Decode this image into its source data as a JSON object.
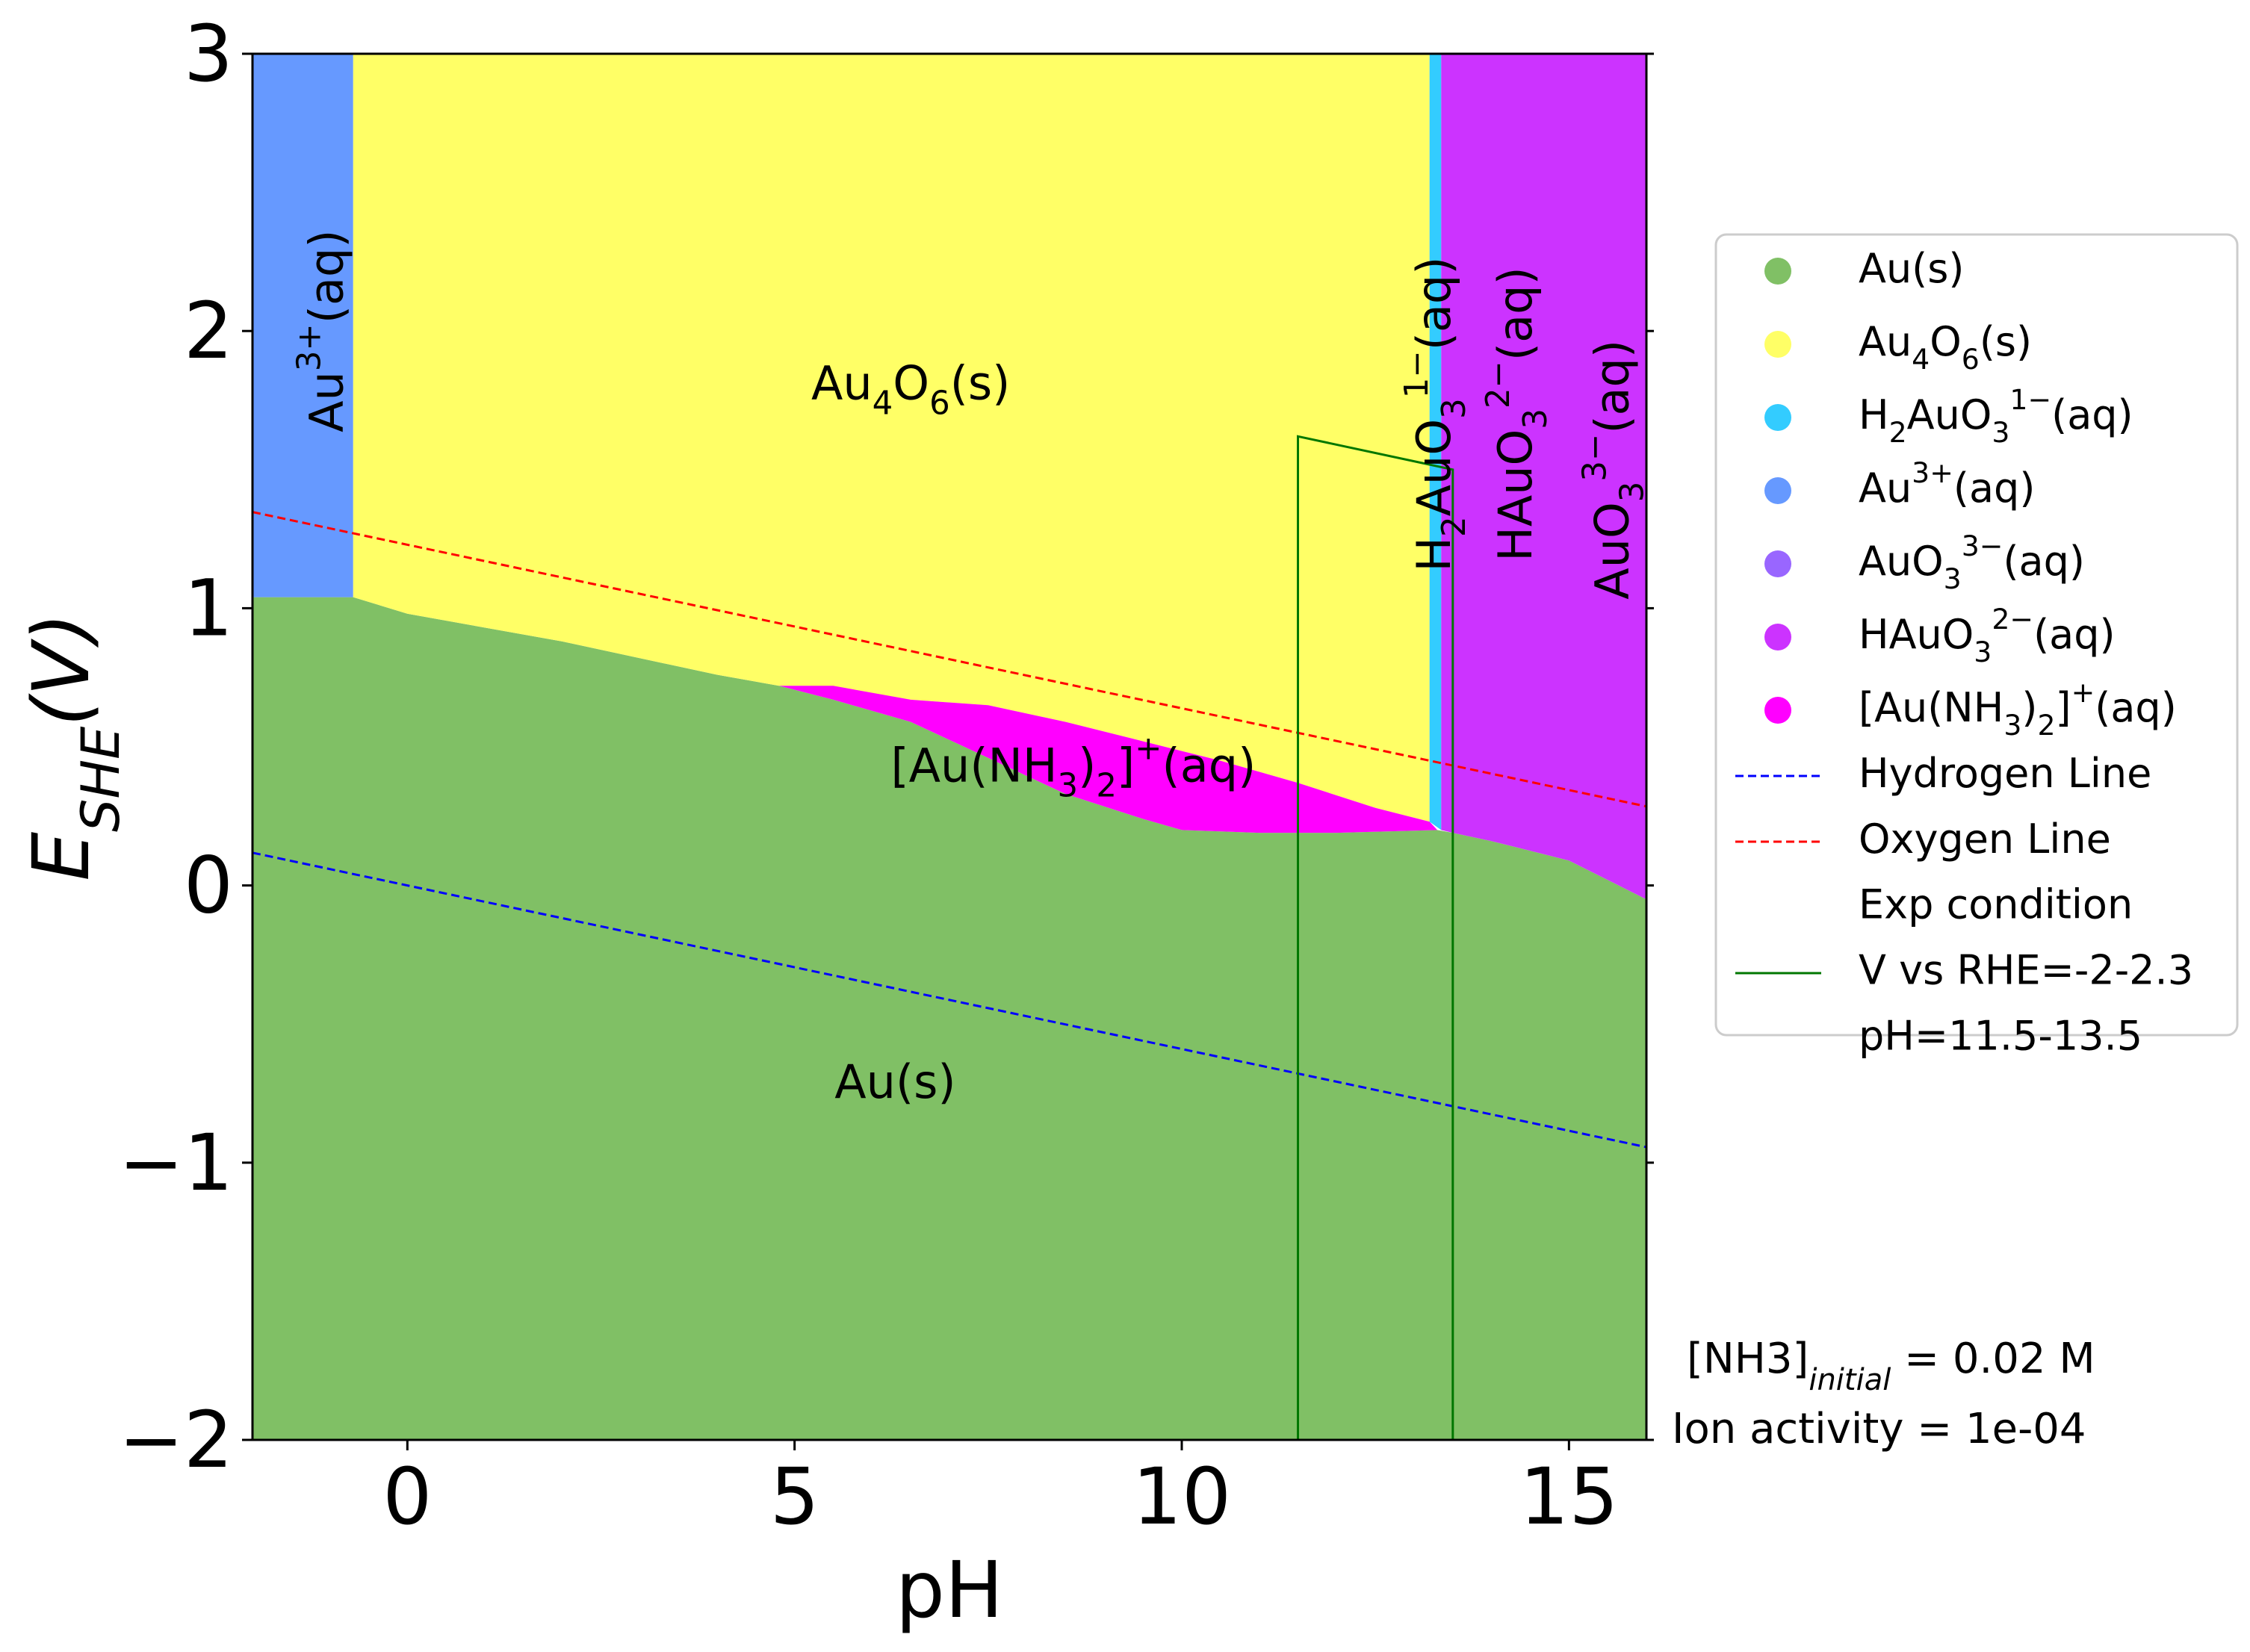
{
  "chart_data": {
    "type": "area",
    "title": "",
    "xlabel": "pH",
    "ylabel": "E_SHE(V)",
    "xlim": [
      -2,
      16
    ],
    "ylim": [
      -2,
      3
    ],
    "xticks": [
      0,
      5,
      10,
      15
    ],
    "yticks": [
      -2,
      -1,
      0,
      1,
      2,
      3
    ],
    "grid": false,
    "colors": {
      "au_s": "#80c065",
      "au4o6": "#ffff66",
      "h2auo3": "#33ccff",
      "au3": "#6699ff",
      "auo3": "#9966ff",
      "hauo3": "#cc33ff",
      "aunh3": "#ff00ff",
      "hydrogen": "#0000ff",
      "oxygen": "#ff0000",
      "exp": "#007700"
    },
    "regions": [
      {
        "species": "Au(s)",
        "color_key": "au_s",
        "boundary": [
          [
            -2,
            -2
          ],
          [
            16,
            -2
          ],
          [
            16,
            -0.05
          ],
          [
            15,
            0.09
          ],
          [
            14,
            0.16
          ],
          [
            13.5,
            0.19
          ],
          [
            13.3,
            0.2
          ],
          [
            12,
            0.19
          ],
          [
            11,
            0.19
          ],
          [
            10,
            0.2
          ],
          [
            9.5,
            0.24
          ],
          [
            8.5,
            0.33
          ],
          [
            7.5,
            0.46
          ],
          [
            6.5,
            0.59
          ],
          [
            5.5,
            0.67
          ],
          [
            4.8,
            0.72
          ],
          [
            4,
            0.76
          ],
          [
            2,
            0.88
          ],
          [
            0,
            0.98
          ],
          [
            -0.7,
            1.04
          ],
          [
            -2,
            1.04
          ]
        ]
      },
      {
        "species": "Au3+(aq)",
        "color_key": "au3",
        "boundary": [
          [
            -2,
            1.04
          ],
          [
            -0.7,
            1.04
          ],
          [
            -0.7,
            3
          ],
          [
            -2,
            3
          ]
        ]
      },
      {
        "species": "Au4O6(s)",
        "color_key": "au4o6",
        "boundary": [
          [
            -0.7,
            1.04
          ],
          [
            0,
            0.98
          ],
          [
            2,
            0.88
          ],
          [
            4,
            0.76
          ],
          [
            4.8,
            0.72
          ],
          [
            5.2,
            0.72
          ],
          [
            6.5,
            0.67
          ],
          [
            7.5,
            0.65
          ],
          [
            8.5,
            0.59
          ],
          [
            9.5,
            0.52
          ],
          [
            10.5,
            0.45
          ],
          [
            11.5,
            0.37
          ],
          [
            12.5,
            0.28
          ],
          [
            13.2,
            0.23
          ],
          [
            13.2,
            3
          ],
          [
            -0.7,
            3
          ]
        ]
      },
      {
        "species": "H2AuO3 1-(aq)",
        "color_key": "h2auo3",
        "boundary": [
          [
            13.2,
            0.23
          ],
          [
            13.35,
            0.2
          ],
          [
            13.35,
            3
          ],
          [
            13.2,
            3
          ]
        ]
      },
      {
        "species": "HAuO3 2-(aq)",
        "color_key": "hauo3",
        "boundary": [
          [
            13.35,
            0.2
          ],
          [
            13.5,
            0.19
          ],
          [
            14,
            0.16
          ],
          [
            15,
            0.09
          ],
          [
            16,
            -0.05
          ],
          [
            16,
            3
          ],
          [
            13.35,
            3
          ]
        ]
      },
      {
        "species": "[Au(NH3)2]+(aq)",
        "color_key": "aunh3",
        "boundary": [
          [
            4.8,
            0.72
          ],
          [
            5.5,
            0.72
          ],
          [
            6.5,
            0.67
          ],
          [
            7.5,
            0.65
          ],
          [
            8.5,
            0.59
          ],
          [
            9.5,
            0.52
          ],
          [
            10.5,
            0.45
          ],
          [
            11.5,
            0.37
          ],
          [
            12.5,
            0.28
          ],
          [
            13.2,
            0.23
          ],
          [
            13.3,
            0.2
          ],
          [
            12,
            0.19
          ],
          [
            11,
            0.19
          ],
          [
            10,
            0.2
          ],
          [
            9.5,
            0.24
          ],
          [
            8.5,
            0.33
          ],
          [
            7.5,
            0.46
          ],
          [
            6.5,
            0.59
          ],
          [
            5.5,
            0.67
          ]
        ]
      }
    ],
    "region_labels": [
      {
        "text": "Au(s)",
        "x": 6.3,
        "y": -0.72,
        "rotate": false
      },
      {
        "text": "Au4O6(s)",
        "x": 6.5,
        "y": 1.8,
        "rotate": false
      },
      {
        "text": "[Au(NH3)2]+(aq)",
        "x": 8.6,
        "y": 0.42,
        "rotate": false
      },
      {
        "text": "Au3+(aq)",
        "x": -1.0,
        "y": 2.0,
        "rotate": true
      },
      {
        "text": "H2AuO3 1-(aq)",
        "x": 13.3,
        "y": 1.7,
        "rotate": true
      },
      {
        "text": "HAuO3 2-(aq)",
        "x": 14.35,
        "y": 1.7,
        "rotate": true
      },
      {
        "text": "AuO3 3-(aq)",
        "x": 15.6,
        "y": 1.5,
        "rotate": true
      }
    ],
    "lines": [
      {
        "name": "Hydrogen Line",
        "color_key": "hydrogen",
        "dashed": true,
        "points": [
          [
            -2,
            0.118
          ],
          [
            16,
            -0.944
          ]
        ]
      },
      {
        "name": "Oxygen Line",
        "color_key": "oxygen",
        "dashed": true,
        "points": [
          [
            -2,
            1.347
          ],
          [
            16,
            0.285
          ]
        ]
      },
      {
        "name": "Exp condition",
        "color_key": "exp",
        "dashed": false,
        "points": [
          [
            11.5,
            -2
          ],
          [
            11.5,
            1.62
          ],
          [
            13.5,
            1.5
          ],
          [
            13.5,
            -2
          ]
        ]
      }
    ],
    "legend": {
      "placement": "right",
      "entries": [
        {
          "label": "Au(s)",
          "marker": "dot",
          "color_key": "au_s"
        },
        {
          "label": "Au4O6(s)",
          "marker": "dot",
          "color_key": "au4o6"
        },
        {
          "label": "H2AuO3 1-(aq)",
          "marker": "dot",
          "color_key": "h2auo3"
        },
        {
          "label": "Au3+(aq)",
          "marker": "dot",
          "color_key": "au3"
        },
        {
          "label": "AuO3 3-(aq)",
          "marker": "dot",
          "color_key": "auo3"
        },
        {
          "label": "HAuO3 2-(aq)",
          "marker": "dot",
          "color_key": "hauo3"
        },
        {
          "label": "[Au(NH3)2]+(aq)",
          "marker": "dot",
          "color_key": "aunh3"
        },
        {
          "label": "Hydrogen Line",
          "marker": "dash",
          "color_key": "hydrogen"
        },
        {
          "label": "Oxygen Line",
          "marker": "dash",
          "color_key": "oxygen"
        },
        {
          "label": "Exp condition\nV vs RHE=-2-2.3\npH=11.5-13.5",
          "marker": "line",
          "color_key": "exp"
        }
      ]
    },
    "annotations": [
      {
        "text": "[NH3]initial = 0.02 M"
      },
      {
        "text": "Ion activity = 1e-04"
      }
    ]
  }
}
